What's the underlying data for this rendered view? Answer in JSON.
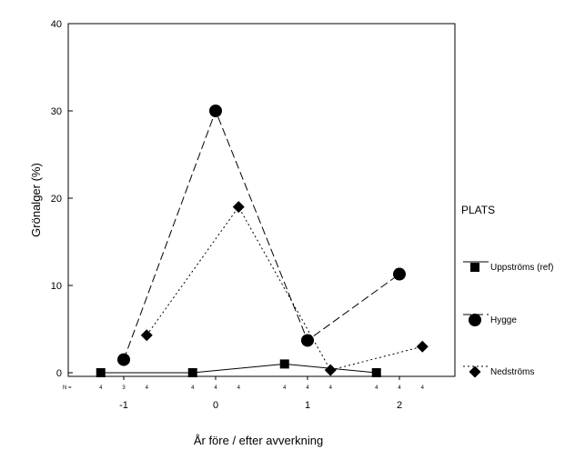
{
  "chart_data": {
    "type": "line",
    "xlabel": "År före / efter avverkning",
    "ylabel": "Grönalger (%)",
    "ylim": [
      0,
      40
    ],
    "yticks": [
      0,
      10,
      20,
      30,
      40
    ],
    "x_ticks": [
      {
        "value": -1,
        "label": "-1"
      },
      {
        "value": 0,
        "label": "0"
      },
      {
        "value": 1,
        "label": "1"
      },
      {
        "value": 2,
        "label": "2"
      }
    ],
    "n_row": {
      "label": "N =",
      "values": [
        "4",
        "3",
        "4",
        "4",
        "4",
        "4",
        "4",
        "4",
        "4",
        "4",
        "4",
        "4"
      ]
    },
    "grid": false,
    "legend": {
      "title": "PLATS",
      "position": "right"
    },
    "series": [
      {
        "name": "Uppströms (ref)",
        "marker": "square",
        "dash": "solid",
        "points": [
          {
            "x": -1.25,
            "y": 0
          },
          {
            "x": -0.25,
            "y": 0
          },
          {
            "x": 0.75,
            "y": 1
          },
          {
            "x": 1.75,
            "y": 0
          }
        ]
      },
      {
        "name": "Hygge",
        "marker": "circle",
        "dash": "long-dash",
        "points": [
          {
            "x": -1.0,
            "y": 1.5
          },
          {
            "x": 0.0,
            "y": 30
          },
          {
            "x": 1.0,
            "y": 3.7
          },
          {
            "x": 2.0,
            "y": 11.3
          }
        ]
      },
      {
        "name": "Nedströms",
        "marker": "diamond",
        "dash": "short-dash",
        "points": [
          {
            "x": -0.75,
            "y": 4.3
          },
          {
            "x": 0.25,
            "y": 19
          },
          {
            "x": 1.25,
            "y": 0.3
          },
          {
            "x": 2.25,
            "y": 3
          }
        ]
      }
    ]
  }
}
